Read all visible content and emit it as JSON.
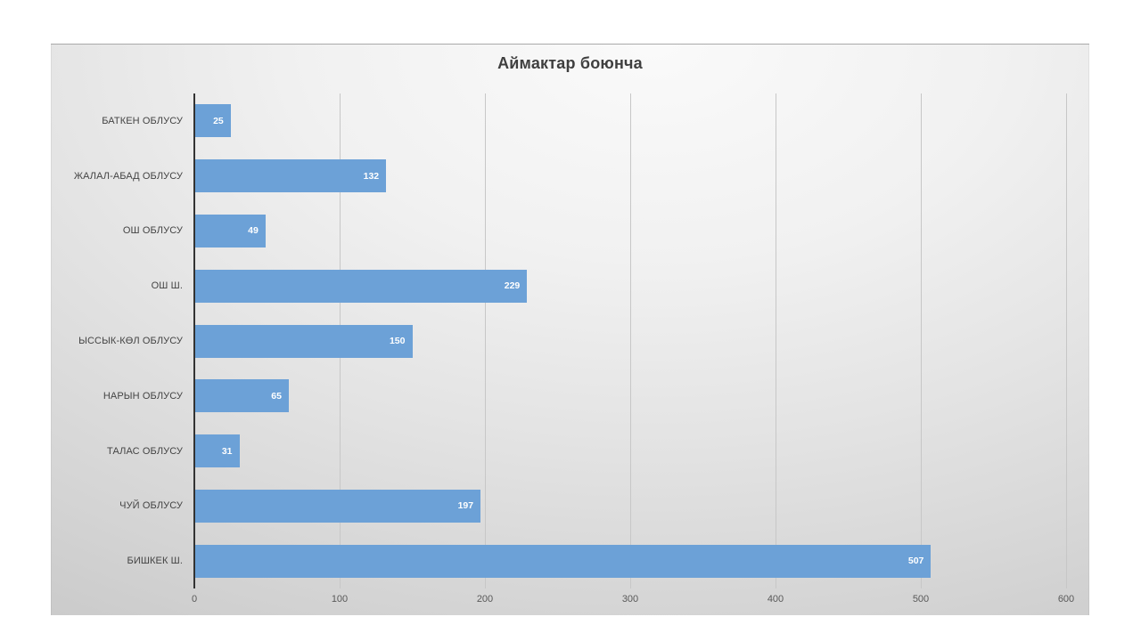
{
  "chart_data": {
    "type": "bar",
    "orientation": "horizontal",
    "title": "Аймактар боюнча",
    "categories": [
      "БАТКЕН ОБЛУСУ",
      "ЖАЛАЛ-АБАД ОБЛУСУ",
      "ОШ ОБЛУСУ",
      "ОШ Ш.",
      "ЫССЫК-КӨЛ ОБЛУСУ",
      "НАРЫН ОБЛУСУ",
      "ТАЛАС ОБЛУСУ",
      "ЧУЙ ОБЛУСУ",
      "БИШКЕК Ш."
    ],
    "values": [
      25,
      132,
      49,
      229,
      150,
      65,
      31,
      197,
      507
    ],
    "value_labels": [
      "25",
      "132",
      "49",
      "229",
      "150",
      "65",
      "31",
      "197",
      "507"
    ],
    "xlabel": "",
    "ylabel": "",
    "xlim": [
      0,
      600
    ],
    "x_ticks": [
      0,
      100,
      200,
      300,
      400,
      500,
      600
    ],
    "x_tick_labels": [
      "0",
      "100",
      "200",
      "300",
      "400",
      "500",
      "600"
    ],
    "grid": true,
    "legend": false,
    "colors": {
      "bar": "#6ca1d7",
      "value_label": "#ffffff",
      "gridline": "#c7c7c7",
      "axis_line": "#333333",
      "category_label": "#444444",
      "tick_label": "#595959",
      "title": "#3f3f3f"
    }
  }
}
